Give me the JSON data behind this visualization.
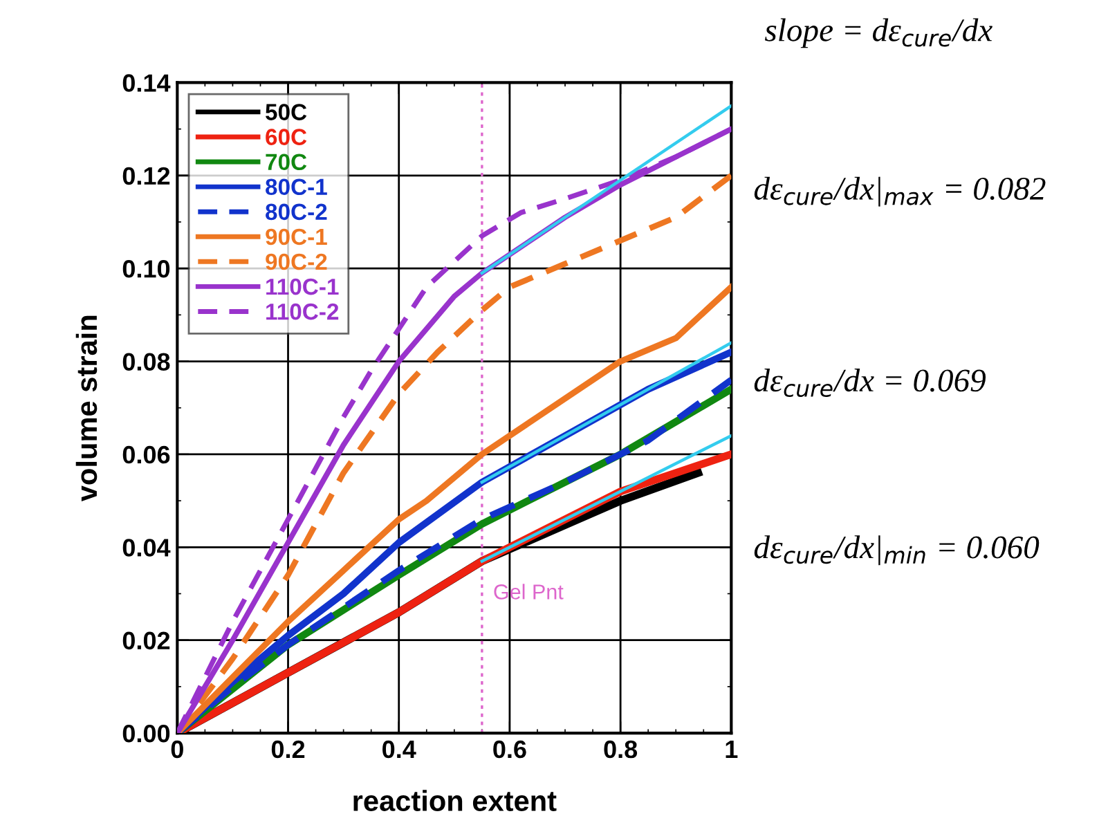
{
  "chart_data": {
    "type": "line",
    "xlabel": "reaction extent",
    "ylabel": "volume strain",
    "xlim": [
      0,
      1
    ],
    "ylim": [
      0,
      0.14
    ],
    "xticks": [
      0,
      0.2,
      0.4,
      0.6,
      0.8,
      1
    ],
    "yticks": [
      {
        "value": 0,
        "label": "0.00"
      },
      {
        "value": 0.02,
        "label": "0.02"
      },
      {
        "value": 0.04,
        "label": "0.04"
      },
      {
        "value": 0.06,
        "label": "0.06"
      },
      {
        "value": 0.08,
        "label": "0.08"
      },
      {
        "value": 0.1,
        "label": "0.10"
      },
      {
        "value": 0.12,
        "label": "0.12"
      },
      {
        "value": 0.14,
        "label": "0.14"
      }
    ],
    "grid": true,
    "legend": "top left",
    "series": [
      {
        "name": "50C",
        "color": "#000000",
        "line_style": "solid",
        "x": [
          0,
          0.2,
          0.4,
          0.55,
          0.8,
          0.94
        ],
        "values": [
          0,
          0.013,
          0.026,
          0.037,
          0.05,
          0.056
        ]
      },
      {
        "name": "60C",
        "color": "#ee2211",
        "line_style": "solid",
        "x": [
          0,
          0.2,
          0.4,
          0.55,
          0.8,
          1.0
        ],
        "values": [
          0,
          0.013,
          0.026,
          0.037,
          0.052,
          0.06
        ]
      },
      {
        "name": "70C",
        "color": "#118811",
        "line_style": "solid",
        "x": [
          0,
          0.2,
          0.4,
          0.55,
          0.8,
          1.0
        ],
        "values": [
          0,
          0.019,
          0.034,
          0.045,
          0.06,
          0.074
        ]
      },
      {
        "name": "80C-1",
        "color": "#1133cc",
        "line_style": "solid",
        "x": [
          0,
          0.1,
          0.2,
          0.3,
          0.4,
          0.55,
          0.7,
          0.85,
          1.0
        ],
        "values": [
          0,
          0.011,
          0.021,
          0.03,
          0.041,
          0.054,
          0.064,
          0.074,
          0.082
        ]
      },
      {
        "name": "80C-2",
        "color": "#1133cc",
        "line_style": "dashed",
        "x": [
          0,
          0.1,
          0.2,
          0.3,
          0.4,
          0.55,
          0.7,
          0.85,
          1.0
        ],
        "values": [
          0,
          0.01,
          0.019,
          0.027,
          0.035,
          0.046,
          0.054,
          0.063,
          0.076
        ]
      },
      {
        "name": "90C-1",
        "color": "#ee7722",
        "line_style": "solid",
        "x": [
          0,
          0.1,
          0.2,
          0.3,
          0.4,
          0.45,
          0.55,
          0.65,
          0.8,
          0.9,
          1.0
        ],
        "values": [
          0,
          0.012,
          0.024,
          0.035,
          0.046,
          0.05,
          0.06,
          0.068,
          0.08,
          0.085,
          0.096
        ]
      },
      {
        "name": "90C-2",
        "color": "#ee7722",
        "line_style": "dashed",
        "x": [
          0,
          0.1,
          0.2,
          0.3,
          0.4,
          0.47,
          0.55,
          0.6,
          0.7,
          0.8,
          0.9,
          1.0
        ],
        "values": [
          0,
          0.016,
          0.034,
          0.056,
          0.073,
          0.082,
          0.091,
          0.096,
          0.101,
          0.106,
          0.111,
          0.12
        ]
      },
      {
        "name": "110C-1",
        "color": "#9933cc",
        "line_style": "solid",
        "x": [
          0,
          0.1,
          0.2,
          0.3,
          0.4,
          0.5,
          0.55,
          0.7,
          0.8,
          0.9,
          1.0
        ],
        "values": [
          0,
          0.02,
          0.041,
          0.062,
          0.08,
          0.094,
          0.099,
          0.111,
          0.118,
          0.124,
          0.13
        ]
      },
      {
        "name": "110C-2",
        "color": "#9933cc",
        "line_style": "dashed",
        "x": [
          0,
          0.1,
          0.2,
          0.3,
          0.35,
          0.4,
          0.45,
          0.55,
          0.62,
          0.7,
          0.8,
          0.9,
          1.0
        ],
        "values": [
          0,
          0.024,
          0.046,
          0.068,
          0.078,
          0.087,
          0.096,
          0.107,
          0.112,
          0.115,
          0.119,
          0.124,
          0.13
        ]
      },
      {
        "color": "#33ccee",
        "line_style": "solid",
        "x": [
          0.55,
          1.0
        ],
        "values": [
          0.099,
          0.135
        ]
      },
      {
        "color": "#33ccee",
        "line_style": "solid",
        "x": [
          0.55,
          1.0
        ],
        "values": [
          0.054,
          0.084
        ]
      },
      {
        "color": "#33ccee",
        "line_style": "solid",
        "x": [
          0.55,
          1.0
        ],
        "values": [
          0.037,
          0.064
        ]
      }
    ],
    "ref_lines": [
      {
        "axis": "x",
        "value": 0.55,
        "label": "Gel Pnt",
        "color": "#dd66cc",
        "line_style": "dotted"
      }
    ],
    "annotations": [
      "slope = dε$_{cure}$/dx",
      "dε$_{cure}$/dx|$_{max}$ = 0.082",
      "dε$_{cure}$/dx = 0.069",
      "dε$_{cure}$/dx|$_{min}$ = 0.060"
    ]
  }
}
